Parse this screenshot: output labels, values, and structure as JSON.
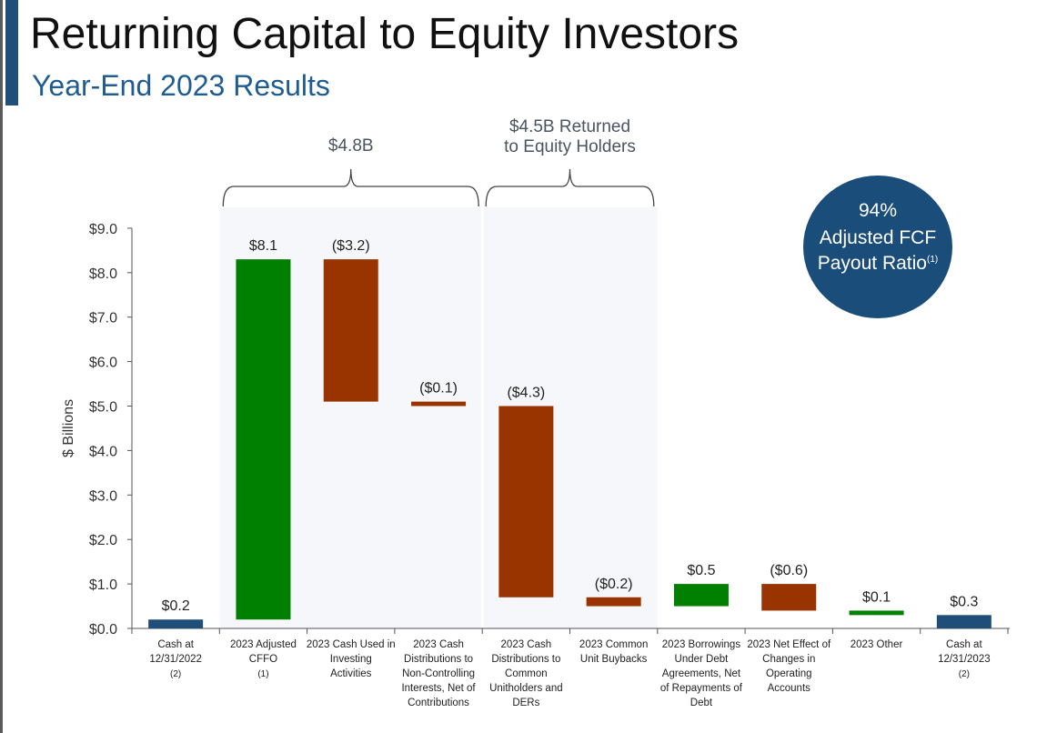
{
  "header": {
    "title": "Returning Capital to Equity Investors",
    "subtitle": "Year-End 2023 Results"
  },
  "badge": {
    "value": "94%",
    "line1": "Adjusted FCF",
    "line2": "Payout Ratio",
    "footnote": "(1)"
  },
  "brackets": [
    {
      "label_lines": [
        "$4.8B"
      ],
      "from_category": 1,
      "to_category": 3
    },
    {
      "label_lines": [
        "$4.5B Returned",
        "to Equity Holders"
      ],
      "from_category": 4,
      "to_category": 5
    }
  ],
  "colors": {
    "increase": "#008000",
    "decrease": "#993300",
    "total": "#1f4e79",
    "shade": "#f5f7fa",
    "axis": "#555555",
    "label": "#222222"
  },
  "chart_data": {
    "type": "bar",
    "subtype": "waterfall",
    "ylabel": "$ Billions",
    "ylim": [
      0,
      9
    ],
    "yticks": [
      0,
      1,
      2,
      3,
      4,
      5,
      6,
      7,
      8,
      9
    ],
    "ytick_labels": [
      "$0.0",
      "$1.0",
      "$2.0",
      "$3.0",
      "$4.0",
      "$5.0",
      "$6.0",
      "$7.0",
      "$8.0",
      "$9.0"
    ],
    "shaded_categories": [
      1,
      2,
      3,
      4,
      5
    ],
    "categories": [
      [
        "Cash at",
        "12/31/2022",
        "(2)"
      ],
      [
        "2023 Adjusted",
        "CFFO",
        "(1)"
      ],
      [
        "2023 Cash Used in",
        "Investing",
        "Activities"
      ],
      [
        "2023 Cash",
        "Distributions to",
        "Non-Controlling",
        "Interests, Net of",
        "Contributions"
      ],
      [
        "2023 Cash",
        "Distributions to",
        "Common",
        "Unitholders and",
        "DERs"
      ],
      [
        "2023 Common",
        "Unit Buybacks"
      ],
      [
        "2023 Borrowings",
        "Under Debt",
        "Agreements, Net",
        "of Repayments of",
        "Debt"
      ],
      [
        "2023 Net Effect of",
        "Changes in",
        "Operating",
        "Accounts"
      ],
      [
        "2023 Other"
      ],
      [
        "Cash at",
        "12/31/2023",
        "(2)"
      ]
    ],
    "bars": [
      {
        "kind": "total",
        "start": 0,
        "end": 0.2,
        "value_label": "$0.2"
      },
      {
        "kind": "increase",
        "start": 0.2,
        "end": 8.3,
        "value_label": "$8.1"
      },
      {
        "kind": "decrease",
        "start": 8.3,
        "end": 5.1,
        "value_label": "($3.2)"
      },
      {
        "kind": "decrease",
        "start": 5.1,
        "end": 5.0,
        "value_label": "($0.1)"
      },
      {
        "kind": "decrease",
        "start": 5.0,
        "end": 0.7,
        "value_label": "($4.3)"
      },
      {
        "kind": "decrease",
        "start": 0.7,
        "end": 0.5,
        "value_label": "($0.2)"
      },
      {
        "kind": "increase",
        "start": 0.5,
        "end": 1.0,
        "value_label": "$0.5"
      },
      {
        "kind": "decrease",
        "start": 1.0,
        "end": 0.4,
        "value_label": "($0.6)"
      },
      {
        "kind": "increase",
        "start": 0.3,
        "end": 0.4,
        "value_label": "$0.1"
      },
      {
        "kind": "total",
        "start": 0,
        "end": 0.3,
        "value_label": "$0.3"
      }
    ]
  }
}
